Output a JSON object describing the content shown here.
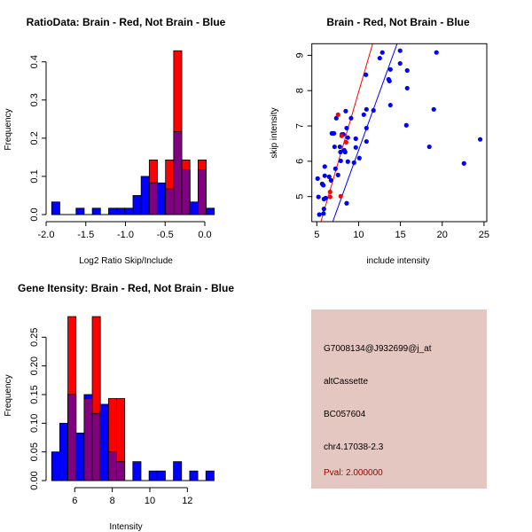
{
  "chart_data": [
    {
      "type": "bar",
      "subtype": "overlaid-histogram",
      "title": "RatioData: Brain - Red, Not Brain - Blue",
      "xlabel": "Log2 Ratio Skip/Include",
      "ylabel": "Frequency",
      "xlim": [
        -2.0,
        0.2
      ],
      "ylim": [
        0,
        0.43
      ],
      "xticks": [
        "-2.0",
        "-1.5",
        "-1.0",
        "-0.5",
        "0.0"
      ],
      "yticks": [
        "0.0",
        "0.1",
        "0.2",
        "0.3",
        "0.4"
      ],
      "bin_start": -1.93,
      "bin_width": 0.1025,
      "series": [
        {
          "name": "Not Brain",
          "color": "#0000ff",
          "values": [
            0.033,
            0,
            0,
            0.0167,
            0,
            0.0167,
            0,
            0.0167,
            0.0167,
            0.0167,
            0.05,
            0.1,
            0.083,
            0.083,
            0.067,
            0.217,
            0.117,
            0.033,
            0.117,
            0.0167
          ]
        },
        {
          "name": "Brain",
          "color": "#ff0000",
          "values": [
            0,
            0,
            0,
            0,
            0,
            0,
            0,
            0,
            0,
            0,
            0,
            0,
            0.143,
            0,
            0.143,
            0.429,
            0.143,
            0,
            0.143,
            0
          ]
        }
      ],
      "overlap_color": "#800080"
    },
    {
      "type": "scatter",
      "title": "Brain - Red, Not Brain - Blue",
      "xlabel": "include intensity",
      "ylabel": "skip intensity",
      "xlim": [
        4.4,
        25.3
      ],
      "ylim": [
        4.3,
        9.33
      ],
      "xticks": [
        "5",
        "10",
        "15",
        "20",
        "25"
      ],
      "yticks": [
        "5",
        "6",
        "7",
        "8",
        "9"
      ],
      "series": [
        {
          "name": "Not Brain",
          "color": "#0000ff",
          "points": [
            [
              5.1,
              5.51
            ],
            [
              5.2,
              4.99
            ],
            [
              5.3,
              4.49
            ],
            [
              5.64,
              5.36
            ],
            [
              5.78,
              5.32
            ],
            [
              5.85,
              4.93
            ],
            [
              5.85,
              4.65
            ],
            [
              5.8,
              4.52
            ],
            [
              5.95,
              5.85
            ],
            [
              5.95,
              5.59
            ],
            [
              6.06,
              4.96
            ],
            [
              6.48,
              5.56
            ],
            [
              6.7,
              5.46
            ],
            [
              6.8,
              6.79
            ],
            [
              7.05,
              6.79
            ],
            [
              7.12,
              6.41
            ],
            [
              7.23,
              5.79
            ],
            [
              7.33,
              7.22
            ],
            [
              7.54,
              5.61
            ],
            [
              7.76,
              6.41
            ],
            [
              7.86,
              6.01
            ],
            [
              7.83,
              6.26
            ],
            [
              8.0,
              6.76
            ],
            [
              8.18,
              6.76
            ],
            [
              8.29,
              6.31
            ],
            [
              8.39,
              6.26
            ],
            [
              8.46,
              7.42
            ],
            [
              8.57,
              6.94
            ],
            [
              8.71,
              6.67
            ],
            [
              8.71,
              5.99
            ],
            [
              8.57,
              4.81
            ],
            [
              9.1,
              7.22
            ],
            [
              9.45,
              5.96
            ],
            [
              9.66,
              6.64
            ],
            [
              9.66,
              6.39
            ],
            [
              10.09,
              6.09
            ],
            [
              10.62,
              7.32
            ],
            [
              10.87,
              8.45
            ],
            [
              10.94,
              7.47
            ],
            [
              10.94,
              6.94
            ],
            [
              10.94,
              6.56
            ],
            [
              11.78,
              7.44
            ],
            [
              12.53,
              8.92
            ],
            [
              12.84,
              9.08
            ],
            [
              13.59,
              8.32
            ],
            [
              13.69,
              8.27
            ],
            [
              13.8,
              8.6
            ],
            [
              13.8,
              7.59
            ],
            [
              14.96,
              9.13
            ],
            [
              14.96,
              8.77
            ],
            [
              15.71,
              7.02
            ],
            [
              15.81,
              8.57
            ],
            [
              15.81,
              8.07
            ],
            [
              18.46,
              6.41
            ],
            [
              18.99,
              7.47
            ],
            [
              19.31,
              9.08
            ],
            [
              22.6,
              5.94
            ],
            [
              24.54,
              6.62
            ]
          ]
        },
        {
          "name": "Brain",
          "color": "#ff0000",
          "points": [
            [
              7.54,
              7.32
            ],
            [
              6.59,
              5.13
            ],
            [
              6.59,
              4.99
            ],
            [
              7.86,
              5.01
            ],
            [
              8.5,
              6.54
            ],
            [
              7.97,
              6.72
            ]
          ]
        }
      ],
      "fit_lines": [
        {
          "name": "Brain fit",
          "color": "#ff0000",
          "slope": 0.814,
          "intercept": -0.18
        },
        {
          "name": "Not Brain fit",
          "color": "#0000ff",
          "slope": 0.655,
          "intercept": -0.236
        }
      ]
    },
    {
      "type": "bar",
      "subtype": "overlaid-histogram",
      "title": "Gene Itensity: Brain - Red, Not Brain - Blue",
      "xlabel": "Intensity",
      "ylabel": "Frequency",
      "xlim": [
        4.5,
        13.7
      ],
      "ylim": [
        0,
        0.29
      ],
      "xticks": [
        "6",
        "8",
        "10",
        "12"
      ],
      "yticks": [
        "0.00",
        "0.05",
        "0.10",
        "0.15",
        "0.20",
        "0.25"
      ],
      "bin_start": 4.77,
      "bin_width": 0.4325,
      "series": [
        {
          "name": "Not Brain",
          "color": "#0000ff",
          "values": [
            0.05,
            0.1,
            0.15,
            0.083,
            0.15,
            0.117,
            0.133,
            0.05,
            0.033,
            0,
            0.033,
            0,
            0.0167,
            0.0167,
            0,
            0.033,
            0,
            0.0167,
            0,
            0.0167
          ]
        },
        {
          "name": "Brain",
          "color": "#ff0000",
          "values": [
            0,
            0,
            0.286,
            0,
            0.143,
            0.286,
            0,
            0.143,
            0.143,
            0,
            0,
            0,
            0,
            0,
            0,
            0,
            0,
            0,
            0,
            0
          ]
        }
      ],
      "overlap_color": "#800080"
    }
  ],
  "info_panel": {
    "background": "#e5c7c1",
    "lines": [
      "G7008134@J932699@j_at",
      "altCassette",
      "BC057604",
      "chr4.17038-2.3"
    ],
    "pval": "Pval: 2.000000",
    "pval_color": "#990000"
  }
}
